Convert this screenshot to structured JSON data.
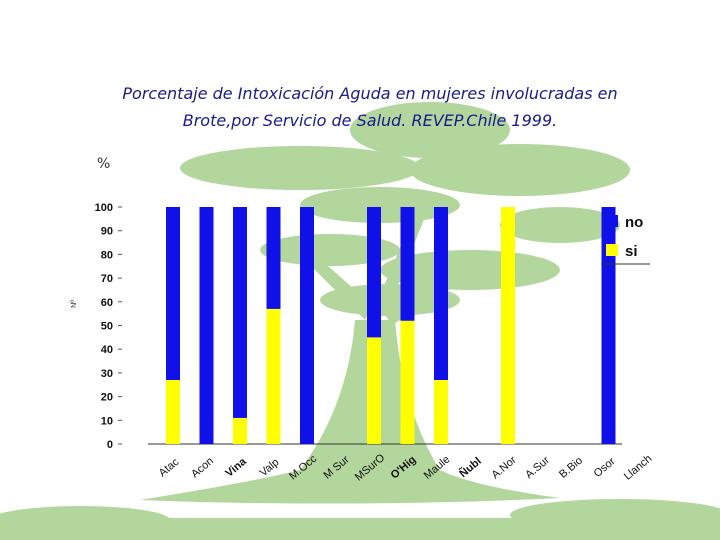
{
  "title_line1": "Porcentaje de Intoxicación Aguda en mujeres involucradas en",
  "title_line2": "Brote,por Servicio de Salud. REVEP.Chile 1999.",
  "percent_label": "%",
  "colors": {
    "no": "#1010e8",
    "si": "#ffff00",
    "tree": "#a6cf8c",
    "title": "#1a1a8c"
  },
  "chart_data": {
    "type": "bar",
    "stacked": true,
    "ylabel": "Nº",
    "ylim": [
      0,
      100
    ],
    "yticks": [
      0,
      10,
      20,
      30,
      40,
      50,
      60,
      70,
      80,
      90,
      100
    ],
    "categories": [
      "Atac",
      "Acon",
      "Vina",
      "Valp",
      "M.Occ",
      "M Sur",
      "MSurO",
      "O'Hig",
      "Maule",
      "Ñubl",
      "A.Nor",
      "A.Sur",
      "B.Bio",
      "Osor",
      "Llanch"
    ],
    "overlap_labels": [
      "Vina",
      "O'Hig",
      "Ñubl"
    ],
    "series": [
      {
        "name": "si",
        "values": [
          27,
          0,
          11,
          57,
          0,
          0,
          45,
          52,
          27,
          0,
          100,
          0,
          0,
          0,
          0
        ],
        "color": "#ffff00"
      },
      {
        "name": "no",
        "values": [
          73,
          100,
          89,
          43,
          100,
          0,
          55,
          48,
          73,
          0,
          0,
          0,
          0,
          100,
          0
        ],
        "color": "#1010e8"
      }
    ],
    "legend": {
      "position": "right",
      "entries": [
        "no",
        "si"
      ]
    }
  }
}
